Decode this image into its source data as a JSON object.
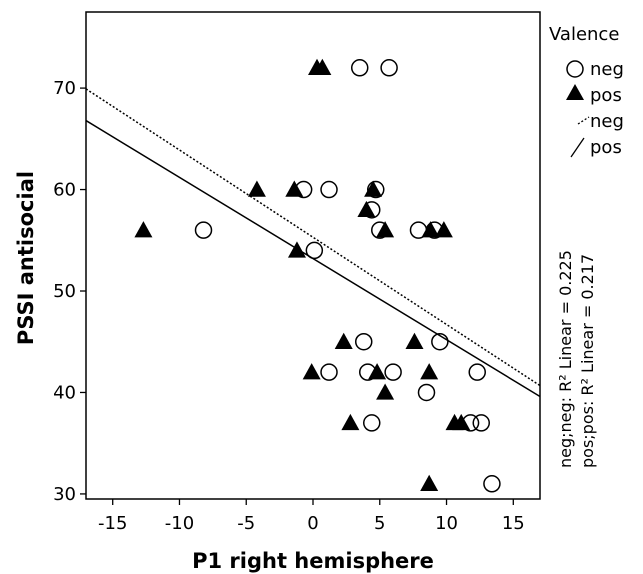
{
  "chart_data": {
    "type": "scatter",
    "xlabel": "P1 right hemisphere",
    "ylabel": "PSSI antisocial",
    "xlim": [
      -17,
      17
    ],
    "ylim": [
      29.5,
      77.5
    ],
    "xticks": [
      -15,
      -10,
      -5,
      0,
      5,
      10,
      15
    ],
    "yticks": [
      30,
      40,
      50,
      60,
      70
    ],
    "grid": false,
    "legend_title": "Valence",
    "legend_position": "right",
    "series": [
      {
        "name": "neg",
        "marker": "circle-open",
        "points": [
          [
            3.5,
            72
          ],
          [
            5.7,
            72
          ],
          [
            -0.7,
            60
          ],
          [
            1.2,
            60
          ],
          [
            4.7,
            60
          ],
          [
            4.4,
            58
          ],
          [
            -8.2,
            56
          ],
          [
            5.0,
            56
          ],
          [
            7.9,
            56
          ],
          [
            9.1,
            56
          ],
          [
            0.1,
            54
          ],
          [
            3.8,
            45
          ],
          [
            9.5,
            45
          ],
          [
            1.2,
            42
          ],
          [
            4.1,
            42
          ],
          [
            6.0,
            42
          ],
          [
            12.3,
            42
          ],
          [
            8.5,
            40
          ],
          [
            4.4,
            37
          ],
          [
            11.8,
            37
          ],
          [
            12.6,
            37
          ],
          [
            13.4,
            31
          ]
        ]
      },
      {
        "name": "pos",
        "marker": "triangle-filled",
        "points": [
          [
            0.3,
            72
          ],
          [
            0.7,
            72
          ],
          [
            -4.2,
            60
          ],
          [
            -1.4,
            60
          ],
          [
            4.5,
            60
          ],
          [
            4.0,
            58
          ],
          [
            -12.7,
            56
          ],
          [
            5.4,
            56
          ],
          [
            8.8,
            56
          ],
          [
            9.8,
            56
          ],
          [
            -1.2,
            54
          ],
          [
            2.3,
            45
          ],
          [
            7.6,
            45
          ],
          [
            -0.1,
            42
          ],
          [
            4.8,
            42
          ],
          [
            8.7,
            42
          ],
          [
            5.4,
            40
          ],
          [
            2.8,
            37
          ],
          [
            10.6,
            37
          ],
          [
            11.1,
            37
          ],
          [
            8.7,
            31
          ]
        ]
      }
    ],
    "fit_lines": [
      {
        "name": "neg",
        "style": "dotted",
        "intercept": 55.3,
        "slope": -0.86
      },
      {
        "name": "pos",
        "style": "solid",
        "intercept": 53.2,
        "slope": -0.8
      }
    ],
    "fit_annotations": [
      "neg;neg: R² Linear = 0.225",
      "pos;pos: R² Linear = 0.217"
    ],
    "legend": {
      "title": "Valence",
      "items": [
        {
          "label": "neg",
          "symbol": "circle-open"
        },
        {
          "label": "pos",
          "symbol": "triangle-filled"
        },
        {
          "label": "neg",
          "symbol": "dotted-line"
        },
        {
          "label": "pos",
          "symbol": "solid-line"
        }
      ]
    },
    "colors": {
      "marker": "#000000",
      "lines": "#000000"
    }
  }
}
